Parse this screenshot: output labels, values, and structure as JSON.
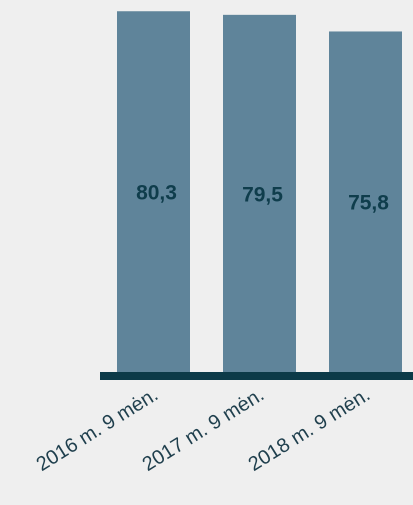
{
  "chart_data": {
    "type": "bar",
    "categories": [
      "2016 m. 9 mėn.",
      "2017 m. 9 mėn.",
      "2018 m. 9 mėn."
    ],
    "values": [
      80.3,
      79.5,
      75.8
    ],
    "value_labels": [
      "80,3",
      "79,5",
      "75,8"
    ],
    "ylim": [
      0,
      80.8
    ],
    "grid": false,
    "legend": "none",
    "colors": {
      "bar": "#5f849a",
      "axis": "#0c3a48",
      "label": "#0f3d4c",
      "background": "#efefef"
    }
  }
}
